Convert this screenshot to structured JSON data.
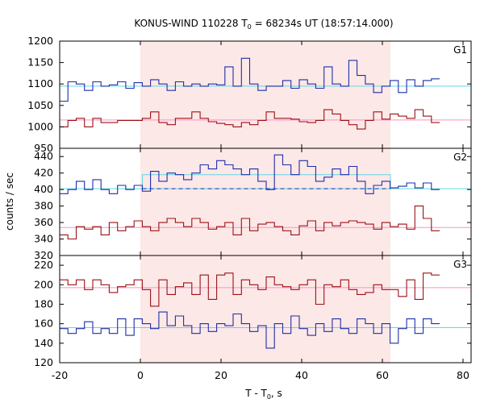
{
  "chart_data": {
    "type": "line",
    "title": "KONUS-WIND 110228 T",
    "title_sub": "0",
    "title_rest": " = 68234s UT (18:57:14.000)",
    "xlabel": "T - T",
    "xlabel_sub": "0",
    "xlabel_rest": ", s",
    "ylabel": "counts / sec",
    "xlim": [
      -20,
      82
    ],
    "xticks": [
      -20,
      0,
      20,
      40,
      60,
      80
    ],
    "shaded_interval": [
      0,
      62
    ],
    "colors": {
      "blue": "#1e2fa8",
      "red": "#9b1116",
      "cyan": "#5fd6e6",
      "pink": "#ff8fc8",
      "shade": "#fde8e8"
    },
    "panels": [
      {
        "label": "G1",
        "ylim": [
          950,
          1200
        ],
        "yticks": [
          950,
          1000,
          1050,
          1100,
          1150,
          1200
        ],
        "blue_bg": 1095,
        "red_bg": 1016,
        "blue": [
          1060,
          1105,
          1100,
          1085,
          1105,
          1095,
          1098,
          1105,
          1090,
          1103,
          1095,
          1110,
          1100,
          1085,
          1105,
          1095,
          1100,
          1095,
          1100,
          1098,
          1140,
          1095,
          1160,
          1100,
          1085,
          1095,
          1095,
          1108,
          1090,
          1110,
          1100,
          1090,
          1140,
          1100,
          1095,
          1155,
          1120,
          1100,
          1080,
          1095,
          1108,
          1080,
          1110,
          1095,
          1108,
          1112
        ],
        "red": [
          1000,
          1015,
          1020,
          1000,
          1020,
          1010,
          1010,
          1015,
          1015,
          1015,
          1020,
          1035,
          1010,
          1005,
          1020,
          1020,
          1035,
          1020,
          1012,
          1008,
          1005,
          1000,
          1010,
          1005,
          1015,
          1035,
          1020,
          1020,
          1018,
          1012,
          1010,
          1015,
          1040,
          1030,
          1015,
          1005,
          995,
          1015,
          1035,
          1018,
          1030,
          1025,
          1020,
          1040,
          1025,
          1010
        ]
      },
      {
        "label": "G2",
        "ylim": [
          320,
          450
        ],
        "yticks": [
          320,
          340,
          360,
          380,
          400,
          420,
          440
        ],
        "blue_bg": 401,
        "red_bg": 354,
        "bump_level": 418,
        "blue": [
          395,
          400,
          410,
          400,
          412,
          400,
          395,
          405,
          400,
          405,
          398,
          422,
          410,
          420,
          418,
          412,
          420,
          430,
          425,
          435,
          430,
          425,
          418,
          425,
          410,
          400,
          442,
          430,
          418,
          435,
          428,
          410,
          415,
          425,
          418,
          428,
          410,
          395,
          405,
          410,
          402,
          404,
          408,
          402,
          408,
          400
        ],
        "red": [
          345,
          340,
          355,
          352,
          355,
          345,
          360,
          350,
          355,
          362,
          355,
          350,
          360,
          365,
          360,
          355,
          365,
          360,
          352,
          355,
          360,
          345,
          365,
          350,
          358,
          360,
          355,
          350,
          345,
          356,
          362,
          350,
          360,
          356,
          360,
          362,
          360,
          358,
          352,
          360,
          355,
          358,
          352,
          380,
          365,
          350
        ]
      },
      {
        "label": "G3",
        "ylim": [
          120,
          230
        ],
        "yticks": [
          120,
          140,
          160,
          180,
          200,
          220
        ],
        "blue_bg": 156,
        "red_bg": 197,
        "blue": [
          155,
          150,
          155,
          162,
          150,
          155,
          150,
          165,
          148,
          165,
          160,
          155,
          172,
          158,
          168,
          158,
          150,
          160,
          152,
          160,
          158,
          170,
          160,
          152,
          158,
          135,
          160,
          150,
          168,
          155,
          148,
          160,
          152,
          165,
          155,
          150,
          165,
          160,
          150,
          160,
          140,
          155,
          165,
          150,
          165,
          160
        ],
        "red": [
          205,
          200,
          205,
          195,
          205,
          200,
          192,
          198,
          200,
          205,
          195,
          178,
          205,
          190,
          198,
          202,
          190,
          210,
          185,
          210,
          212,
          190,
          205,
          200,
          195,
          208,
          200,
          198,
          195,
          200,
          205,
          180,
          200,
          198,
          205,
          195,
          190,
          192,
          200,
          195,
          195,
          188,
          205,
          185,
          212,
          210
        ]
      }
    ]
  }
}
